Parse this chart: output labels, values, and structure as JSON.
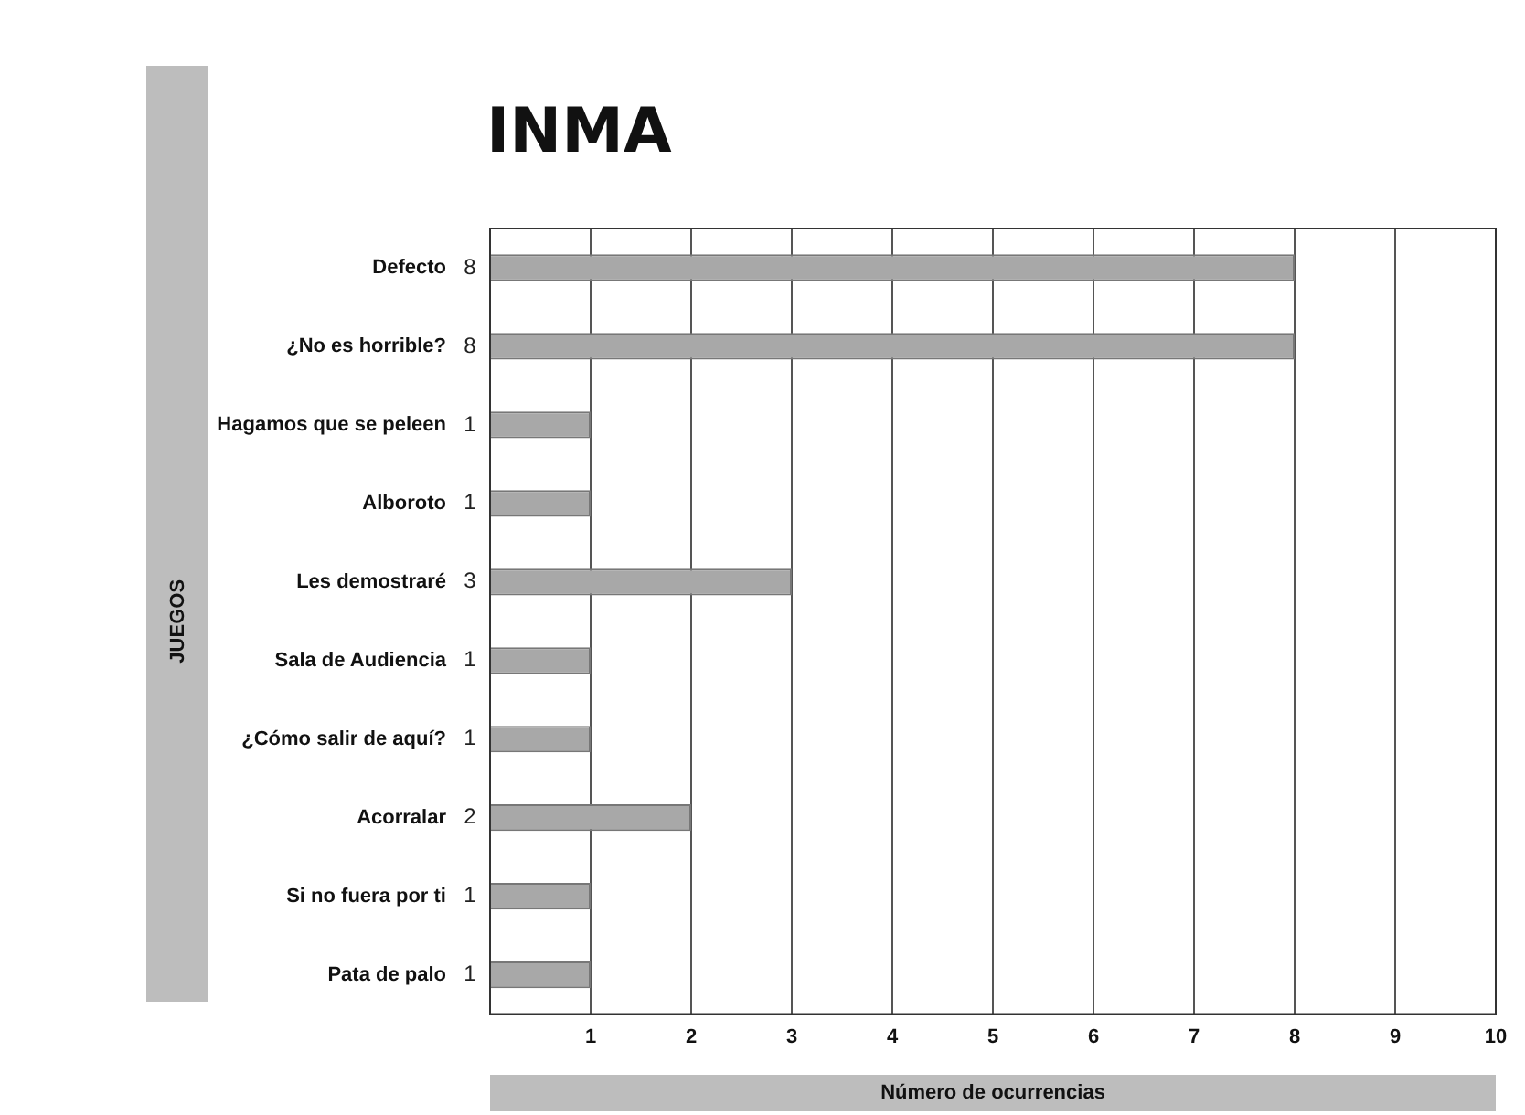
{
  "chart_data": {
    "type": "bar",
    "orientation": "horizontal",
    "title": "INMA",
    "xlabel": "Número de ocurrencias",
    "ylabel": "JUEGOS",
    "categories": [
      "Defecto",
      "¿No es horrible?",
      "Hagamos que se peleen",
      "Alboroto",
      "Les demostraré",
      "Sala de Audiencia",
      "¿Cómo salir de aquí?",
      "Acorralar",
      "Si no fuera por ti",
      "Pata de palo"
    ],
    "values": [
      8,
      8,
      1,
      1,
      3,
      1,
      1,
      2,
      1,
      1
    ],
    "color": "#a8a8a8",
    "xlim": [
      0,
      10
    ],
    "xticks": [
      1,
      2,
      3,
      4,
      5,
      6,
      7,
      8,
      9,
      10
    ],
    "grid": "x",
    "data_labels": true
  }
}
